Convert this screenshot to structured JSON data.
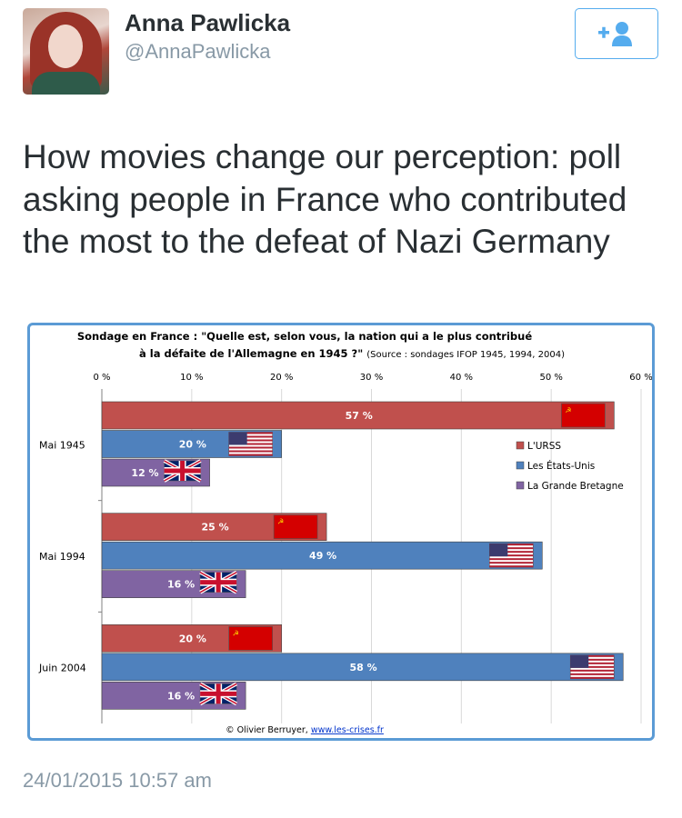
{
  "tweet": {
    "author_name": "Anna Pawlicka",
    "author_handle": "@AnnaPawlicka",
    "text": "How movies change our perception: poll asking people in France who contributed the most to the defeat of Nazi Germany",
    "timestamp": "24/01/2015 10:57 am",
    "follow_icon": "add-user-icon",
    "accent_color": "#55acee"
  },
  "chart_data": {
    "type": "bar",
    "orientation": "horizontal",
    "title_line1": "Sondage en France : \"Quelle est, selon vous, la nation qui a le plus contribué",
    "title_line2": "à la défaite de l'Allemagne en 1945 ?\"",
    "source": "(Source : sondages IFOP 1945, 1994, 2004)",
    "categories": [
      "Mai 1945",
      "Mai 1994",
      "Juin 2004"
    ],
    "x_ticks": [
      "0 %",
      "10 %",
      "20 %",
      "30 %",
      "40 %",
      "50 %",
      "60 %"
    ],
    "xlim": [
      0,
      60
    ],
    "grid": true,
    "legend_position": "right",
    "series": [
      {
        "name": "L'URSS",
        "color": "#c0504d",
        "flag": "ussr",
        "values": [
          57,
          25,
          20
        ],
        "labels": [
          "57 %",
          "25 %",
          "20 %"
        ]
      },
      {
        "name": "Les États-Unis",
        "color": "#4f81bd",
        "flag": "usa",
        "values": [
          20,
          49,
          58
        ],
        "labels": [
          "20 %",
          "49 %",
          "58 %"
        ]
      },
      {
        "name": "La Grande Bretagne",
        "color": "#8064a2",
        "flag": "uk",
        "values": [
          12,
          16,
          16
        ],
        "labels": [
          "12 %",
          "16 %",
          "16 %"
        ]
      }
    ],
    "credit_prefix": "© Olivier Berruyer, ",
    "credit_link": "www.les-crises.fr"
  }
}
